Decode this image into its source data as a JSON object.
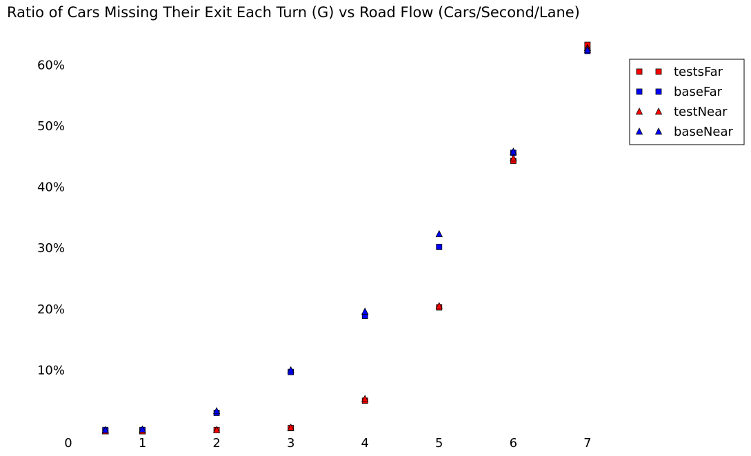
{
  "chart_data": {
    "type": "scatter",
    "title": "Ratio of Cars Missing Their Exit Each Turn (G) vs Road Flow (Cars/Second/Lane)",
    "xlabel": "",
    "ylabel": "",
    "xlim": [
      0,
      9
    ],
    "ylim": [
      0,
      0.65
    ],
    "x_ticks": [
      0,
      1,
      2,
      3,
      4,
      5,
      6,
      7
    ],
    "x_tick_labels": [
      "0",
      "1",
      "2",
      "3",
      "4",
      "5",
      "6",
      "7"
    ],
    "y_ticks": [
      0.1,
      0.2,
      0.3,
      0.4,
      0.5,
      0.6
    ],
    "y_tick_labels": [
      "10%",
      "20%",
      "30%",
      "40%",
      "50%",
      "60%"
    ],
    "grid": false,
    "legend_position": "top-right",
    "series": [
      {
        "name": "testsFar",
        "marker": "square",
        "color": "#ff0000",
        "points": [
          [
            0.5,
            0.0
          ],
          [
            1,
            0.0
          ],
          [
            2,
            0.002
          ],
          [
            3,
            0.005
          ],
          [
            4,
            0.05
          ],
          [
            5,
            0.203
          ],
          [
            6,
            0.443
          ],
          [
            7,
            0.633
          ]
        ]
      },
      {
        "name": "baseFar",
        "marker": "square",
        "color": "#0000ff",
        "points": [
          [
            0.5,
            0.002
          ],
          [
            1,
            0.002
          ],
          [
            2,
            0.03
          ],
          [
            3,
            0.097
          ],
          [
            4,
            0.189
          ],
          [
            5,
            0.302
          ],
          [
            6,
            0.456
          ],
          [
            7,
            0.623
          ]
        ]
      },
      {
        "name": "testNear",
        "marker": "triangle",
        "color": "#ff0000",
        "points": [
          [
            0.5,
            0.0
          ],
          [
            1,
            0.0
          ],
          [
            2,
            0.002
          ],
          [
            3,
            0.006
          ],
          [
            4,
            0.053
          ],
          [
            5,
            0.205
          ],
          [
            6,
            0.447
          ],
          [
            7,
            0.628
          ]
        ]
      },
      {
        "name": "baseNear",
        "marker": "triangle",
        "color": "#0000ff",
        "points": [
          [
            0.5,
            0.002
          ],
          [
            1,
            0.003
          ],
          [
            2,
            0.033
          ],
          [
            3,
            0.1
          ],
          [
            4,
            0.196
          ],
          [
            5,
            0.323
          ],
          [
            6,
            0.458
          ],
          [
            7,
            0.625
          ]
        ]
      }
    ]
  }
}
